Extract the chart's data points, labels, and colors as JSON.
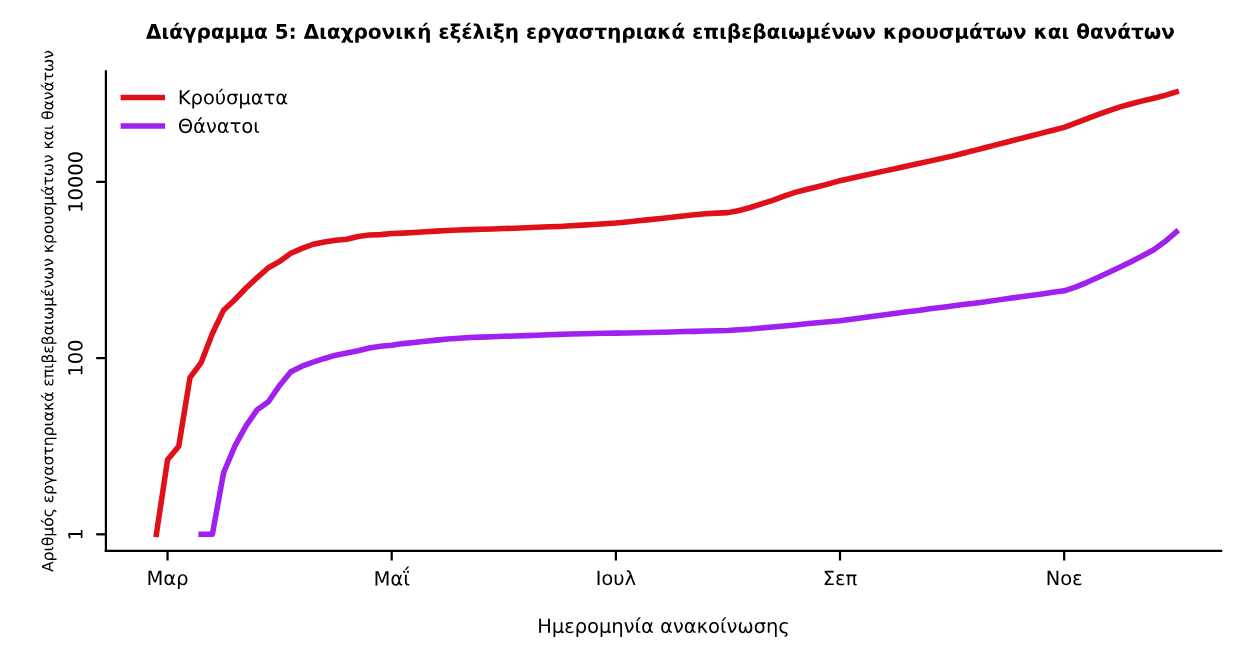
{
  "chart_data": {
    "type": "line",
    "title": "Διάγραμμα 5: Διαχρονική εξέλιξη εργαστηριακά επιβεβαιωμένων κρουσμάτων και θανάτων",
    "xlabel": "Ημερομηνία ανακοίνωσης",
    "ylabel": "Αριθμός εργαστηριακά επιβεβαιωμένων κρουσμάτων και θανάτων",
    "log": "y",
    "grid": false,
    "legend": "top left",
    "marker": "none",
    "line_style": "solid",
    "ylim": [
      0.65,
      180000
    ],
    "yticks": [
      1,
      100,
      10000
    ],
    "categories": [
      null,
      "Μαρ",
      null,
      null,
      null,
      null,
      null,
      null,
      null,
      null,
      null,
      null,
      null,
      null,
      null,
      null,
      null,
      null,
      null,
      null,
      null,
      "Μαΐ",
      null,
      null,
      null,
      null,
      null,
      null,
      null,
      null,
      null,
      null,
      null,
      null,
      null,
      null,
      null,
      null,
      null,
      null,
      null,
      "Ιουλ",
      null,
      null,
      null,
      null,
      null,
      null,
      null,
      null,
      null,
      null,
      null,
      null,
      null,
      null,
      null,
      null,
      null,
      null,
      null,
      "Σεπ",
      null,
      null,
      null,
      null,
      null,
      null,
      null,
      null,
      null,
      null,
      null,
      null,
      null,
      null,
      null,
      null,
      null,
      null,
      null,
      "Νοε",
      null,
      null,
      null,
      null,
      null,
      null,
      null,
      null,
      null,
      null
    ],
    "series": [
      {
        "name": "Κρούσματα",
        "color": "#e0101a",
        "values": [
          1,
          7,
          10,
          60,
          89,
          190,
          350,
          460,
          624,
          820,
          1060,
          1250,
          1550,
          1760,
          1960,
          2080,
          2170,
          2230,
          2400,
          2490,
          2520,
          2591,
          2620,
          2660,
          2710,
          2760,
          2800,
          2840,
          2870,
          2900,
          2918,
          2950,
          2980,
          3010,
          3050,
          3090,
          3120,
          3170,
          3230,
          3280,
          3340,
          3409,
          3510,
          3620,
          3730,
          3850,
          3960,
          4110,
          4230,
          4340,
          4420,
          4477,
          4740,
          5120,
          5620,
          6180,
          6900,
          7600,
          8200,
          8800,
          9500,
          10317,
          11000,
          11720,
          12500,
          13330,
          14200,
          15140,
          16140,
          17210,
          18350,
          19613,
          21150,
          22800,
          24580,
          26500,
          28560,
          30800,
          33200,
          35780,
          38570,
          41527,
          46500,
          52000,
          58000,
          64500,
          71000,
          77000,
          83000,
          89000,
          96000,
          105000
        ]
      },
      {
        "name": "Θάνατοι",
        "color": "#a020f0",
        "values": [
          null,
          null,
          null,
          null,
          1,
          1,
          5,
          10,
          17,
          26,
          32,
          49,
          70,
          81,
          90,
          99,
          108,
          114,
          121,
          130,
          136,
          140,
          146,
          150,
          155,
          160,
          165,
          168,
          171,
          173,
          175,
          177,
          178,
          180,
          182,
          184,
          186,
          188,
          189,
          190,
          191,
          192,
          193,
          194,
          195,
          197,
          198,
          200,
          201,
          203,
          204,
          206,
          210,
          214,
          220,
          226,
          232,
          238,
          245,
          252,
          259,
          266,
          276,
          287,
          298,
          310,
          322,
          335,
          348,
          362,
          376,
          391,
          405,
          420,
          435,
          455,
          475,
          495,
          515,
          535,
          558,
          581,
          640,
          720,
          820,
          940,
          1080,
          1250,
          1450,
          1700,
          2100,
          2700
        ]
      }
    ]
  }
}
